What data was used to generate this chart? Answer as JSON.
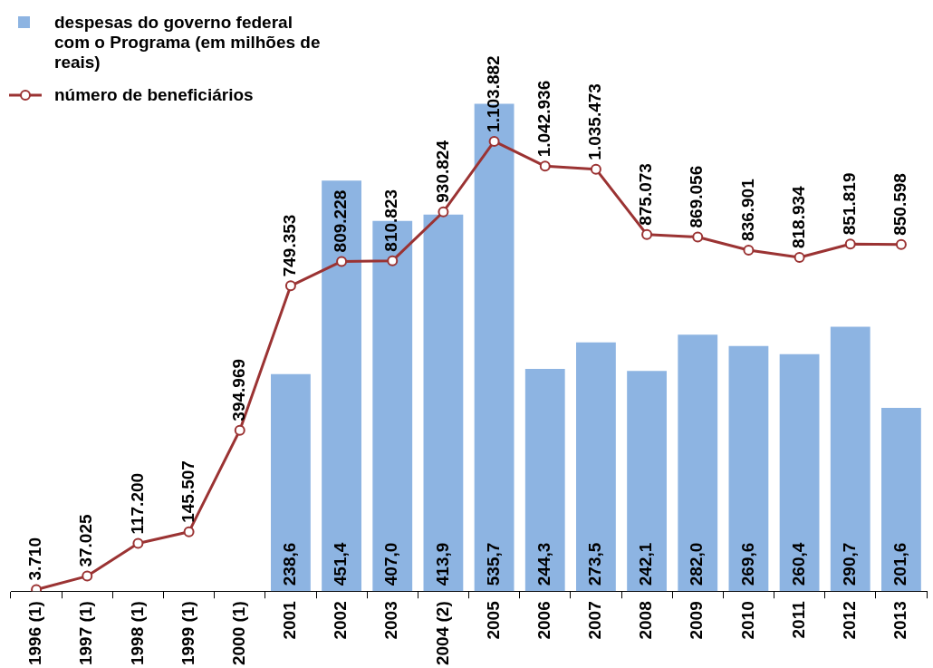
{
  "chart_data": {
    "type": "bar",
    "categories": [
      "1996 (1)",
      "1997 (1)",
      "1998 (1)",
      "1999 (1)",
      "2000 (1)",
      "2001",
      "2002",
      "2003",
      "2004 (2)",
      "2005",
      "2006",
      "2007",
      "2008",
      "2009",
      "2010",
      "2011",
      "2012",
      "2013"
    ],
    "series": [
      {
        "name": "despesas do governo federal com o Programa (em milhões de reais)",
        "color": "#8db4e2",
        "values": [
          null,
          null,
          null,
          null,
          null,
          238.6,
          451.4,
          407.0,
          413.9,
          535.7,
          244.3,
          273.5,
          242.1,
          282.0,
          269.6,
          260.4,
          290.7,
          201.6
        ],
        "value_labels": [
          null,
          null,
          null,
          null,
          null,
          "238,6",
          "451,4",
          "407,0",
          "413,9",
          "535,7",
          "244,3",
          "273,5",
          "242,1",
          "282,0",
          "269,6",
          "260,4",
          "290,7",
          "201,6"
        ]
      },
      {
        "name": "número de beneficiários",
        "type": "line",
        "axis": "y2",
        "color": "#9b3333",
        "marker": "circle",
        "values": [
          3710,
          37025,
          117200,
          145507,
          394969,
          749353,
          809228,
          810823,
          930824,
          1103882,
          1042936,
          1035473,
          875073,
          869056,
          836901,
          818934,
          851819,
          850598
        ],
        "value_labels": [
          "3.710",
          "37.025",
          "117.200",
          "145.507",
          "394.969",
          "749.353",
          "809.228",
          "810.823",
          "930.824",
          "1.103.882",
          "1.042.936",
          "1.035.473",
          "875.073",
          "869.056",
          "836.901",
          "818.934",
          "851.819",
          "850.598"
        ]
      }
    ],
    "data_labels": true,
    "legend": "top left",
    "grid": false
  }
}
